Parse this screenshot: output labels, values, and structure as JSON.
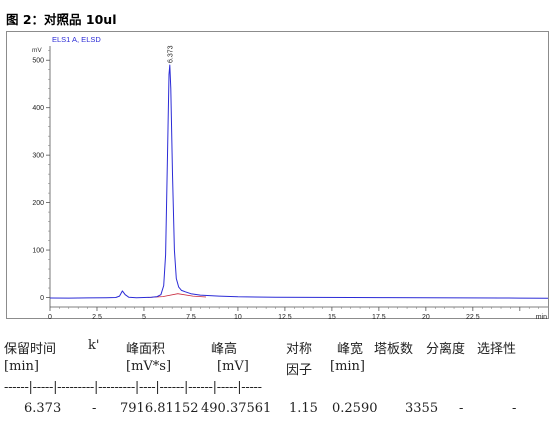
{
  "figure_title": "图 2：对照品 10ul",
  "chart_data": {
    "type": "line",
    "signal_name": "ELS1 A, ELSD",
    "y_unit": "mV",
    "x_unit": "min",
    "xlim": [
      0,
      26.5
    ],
    "ylim": [
      -20,
      530
    ],
    "x_ticks": [
      0,
      2.5,
      5,
      7.5,
      10,
      12.5,
      15,
      17.5,
      20,
      22.5,
      25
    ],
    "x_tick_labels": [
      "0",
      "2.5",
      "5",
      "7.5",
      "10",
      "12.5",
      "15",
      "17.5",
      "20",
      "22.5",
      "min"
    ],
    "y_ticks": [
      0,
      100,
      200,
      300,
      400,
      500
    ],
    "y_tick_labels": [
      "0",
      "100",
      "200",
      "300",
      "400",
      "500"
    ],
    "peak_label": "6.373",
    "trace_color": "#2b2bd6",
    "baseline_color": "#c8283c",
    "points": [
      [
        0,
        -1
      ],
      [
        1,
        -1.2
      ],
      [
        2,
        -0.8
      ],
      [
        3,
        -0.5
      ],
      [
        3.5,
        0
      ],
      [
        3.7,
        3
      ],
      [
        3.85,
        14
      ],
      [
        4.0,
        6
      ],
      [
        4.2,
        0.5
      ],
      [
        4.6,
        -0.5
      ],
      [
        5.0,
        0
      ],
      [
        5.4,
        0.5
      ],
      [
        5.7,
        2
      ],
      [
        5.9,
        6
      ],
      [
        6.05,
        25
      ],
      [
        6.15,
        90
      ],
      [
        6.25,
        300
      ],
      [
        6.33,
        470
      ],
      [
        6.373,
        490
      ],
      [
        6.43,
        440
      ],
      [
        6.52,
        260
      ],
      [
        6.62,
        100
      ],
      [
        6.72,
        40
      ],
      [
        6.85,
        22
      ],
      [
        7.0,
        15
      ],
      [
        7.2,
        12
      ],
      [
        7.5,
        8
      ],
      [
        8,
        5
      ],
      [
        9,
        3
      ],
      [
        10,
        1.5
      ],
      [
        12,
        0.5
      ],
      [
        14,
        0.2
      ],
      [
        16,
        0
      ],
      [
        18,
        -0.2
      ],
      [
        20,
        -0.5
      ],
      [
        22,
        -0.8
      ],
      [
        24,
        -1
      ],
      [
        25,
        -1.2
      ],
      [
        26.5,
        -1.5
      ]
    ],
    "baseline": [
      [
        5.2,
        0
      ],
      [
        6.0,
        2
      ],
      [
        6.8,
        8
      ],
      [
        7.6,
        3
      ],
      [
        8.3,
        1
      ]
    ],
    "grid": false
  },
  "results_table": {
    "headers": [
      "保留时间",
      "k'",
      "峰面积",
      "峰高",
      "对称",
      "峰宽",
      "塔板数",
      "分离度",
      "选择性"
    ],
    "units": [
      "[min]",
      "",
      "[mV*s]",
      "[mV]",
      "因子",
      "[min]",
      "",
      "",
      ""
    ],
    "separator": "------|-----|---------|---------|----|------|------|-----|-----",
    "rows": [
      [
        "6.373",
        "-",
        "7916.81152",
        "490.37561",
        "1.15",
        "0.2590",
        "3355",
        "-",
        "-"
      ]
    ]
  }
}
